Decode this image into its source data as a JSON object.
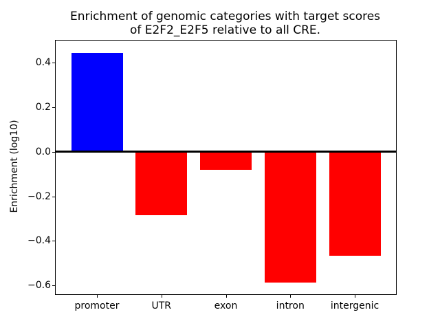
{
  "chart_data": {
    "type": "bar",
    "title_lines": [
      "Enrichment of genomic categories with target scores",
      "of E2F2_E2F5 relative to all CRE."
    ],
    "ylabel": "Enrichment (log10)",
    "xlabel": "",
    "categories": [
      "promoter",
      "UTR",
      "exon",
      "intron",
      "intergenic"
    ],
    "values": [
      0.445,
      -0.285,
      -0.08,
      -0.588,
      -0.466
    ],
    "bar_colors": [
      "#0000ff",
      "#ff0000",
      "#ff0000",
      "#ff0000",
      "#ff0000"
    ],
    "ylim": [
      -0.64,
      0.5
    ],
    "xlim": [
      -0.64,
      4.64
    ],
    "bar_width": 0.8,
    "yticks": [
      0.4,
      0.2,
      0.0,
      -0.2,
      -0.4,
      -0.6
    ],
    "ytick_labels": [
      "0.4",
      "0.2",
      "0.0",
      "−0.2",
      "−0.4",
      "−0.6"
    ],
    "zero_line": {
      "value": 0,
      "color": "#000000",
      "thickness_px": 3
    },
    "grid": false,
    "legend": null,
    "background_color": "#ffffff",
    "text_color": "#000000"
  }
}
